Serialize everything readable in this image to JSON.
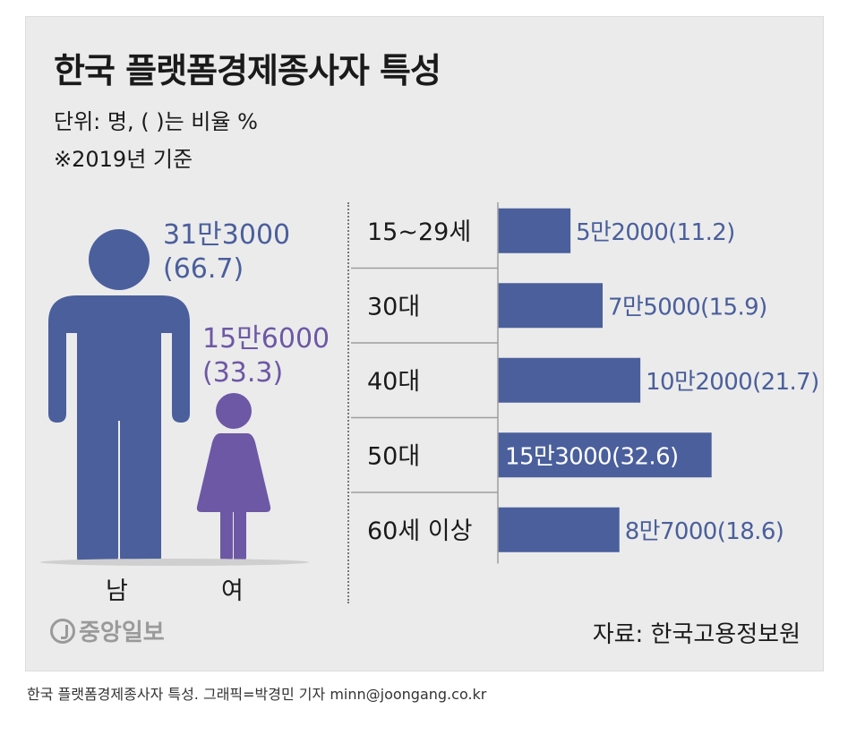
{
  "title": "한국 플랫폼경제종사자 특성",
  "subtitle": "단위: 명, ( )는 비율 %",
  "note": "※2019년 기준",
  "source": "자료: 한국고용정보원",
  "logo_text": "중앙일보",
  "caption": "한국 플랫폼경제종사자 특성. 그래픽=박경민 기자 minn@joongang.co.kr",
  "colors": {
    "bar": "#4a5f9c",
    "male": "#4a5f9c",
    "female": "#6d58a5",
    "male_text": "#4a5f9c",
    "female_text": "#6d58a5"
  },
  "gender": {
    "male": {
      "label": "남",
      "count": "31만3000",
      "pct": "(66.7)"
    },
    "female": {
      "label": "여",
      "count": "15만6000",
      "pct": "(33.3)"
    }
  },
  "chart_data": [
    {
      "type": "bar",
      "orientation": "horizontal",
      "categories": [
        "15~29세",
        "30대",
        "40대",
        "50대",
        "60세 이상"
      ],
      "values": [
        52000,
        75000,
        102000,
        153000,
        87000
      ],
      "percent": [
        11.2,
        15.9,
        21.7,
        32.6,
        18.6
      ],
      "labels": [
        "5만2000(11.2)",
        "7만5000(15.9)",
        "10만2000(21.7)",
        "15만3000(32.6)",
        "8만7000(18.6)"
      ]
    },
    {
      "type": "pictogram",
      "categories": [
        "남",
        "여"
      ],
      "values": [
        313000,
        156000
      ],
      "percent": [
        66.7,
        33.3
      ],
      "labels": [
        "31만3000(66.7)",
        "15만6000(33.3)"
      ]
    }
  ]
}
